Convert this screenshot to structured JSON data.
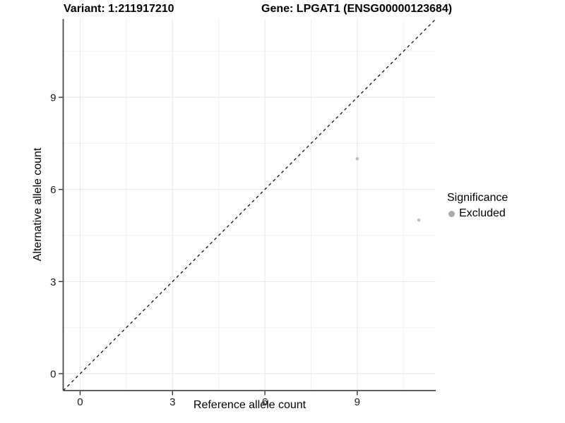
{
  "chart_data": {
    "type": "scatter",
    "title_left": "Variant: 1:211917210",
    "title_right": "Gene: LPGAT1 (ENSG00000123684)",
    "xlabel": "Reference allele count",
    "ylabel": "Alternative allele count",
    "x_ticks": [
      0,
      3,
      6,
      9
    ],
    "y_ticks": [
      0,
      3,
      6,
      9
    ],
    "x_minor_ticks": [
      1.5,
      4.5,
      7.5,
      10.5
    ],
    "y_minor_ticks": [
      1.5,
      4.5,
      7.5,
      10.5
    ],
    "xlim": [
      -0.55,
      11.55
    ],
    "ylim": [
      -0.55,
      11.55
    ],
    "grid": true,
    "legend_position": "right",
    "reference_line": {
      "type": "identity-diagonal",
      "style": "dashed"
    },
    "series": [
      {
        "name": "Excluded",
        "points": [
          {
            "x": 9,
            "y": 7
          },
          {
            "x": 11,
            "y": 5
          }
        ]
      }
    ],
    "legend": {
      "title": "Significance",
      "entries": [
        {
          "label": "Excluded",
          "color": "#ababab"
        }
      ]
    },
    "style": {
      "point_color": "#bdbdbd",
      "point_radius": 2.3,
      "legend_dot_color": "#ababab",
      "dashed_line_color": "#000000",
      "grid_major_color": "#e6e6e6",
      "grid_minor_color": "#f2f2f2",
      "axis_line_color": "#4a4a4a",
      "tick_mark_color": "#333333",
      "tick_label_color": "#1a1a1a",
      "text_color": "#000000"
    }
  }
}
